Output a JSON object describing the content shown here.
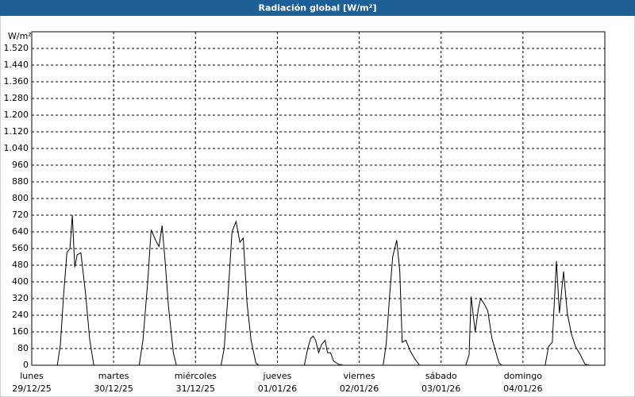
{
  "chart_data": {
    "type": "line",
    "title": "Radiación global [W/m²]",
    "y_label": "W/m²",
    "x": [
      0,
      7.5,
      8.4,
      9.3,
      10.3,
      11.2,
      11.9,
      12.6,
      13.3,
      14.4,
      15.8,
      17,
      18.2,
      31.5,
      32.6,
      34.0,
      35.0,
      36.3,
      37.3,
      38.2,
      39.1,
      40.1,
      41.5,
      42.4,
      55.5,
      56.4,
      57.6,
      58.7,
      59.9,
      61.0,
      62.0,
      63.1,
      64.3,
      65.7,
      66.6,
      79.9,
      80.9,
      81.8,
      82.5,
      83.2,
      84.1,
      85.0,
      86.0,
      86.7,
      87.6,
      88.5,
      89.9,
      91.3,
      103.0,
      103.9,
      104.9,
      105.8,
      107.0,
      107.9,
      108.6,
      109.7,
      110.9,
      112.3,
      113.7,
      127.2,
      128.2,
      128.8,
      130.0,
      130.9,
      131.6,
      132.8,
      133.7,
      134.9,
      136.1,
      137.0,
      137.9,
      139.8,
      141.5,
      143.5,
      150.5,
      151.5,
      152.6,
      153.8,
      154.7,
      155.9,
      157.0,
      158.2,
      159.4,
      160.8,
      162.2,
      163.6,
      168
    ],
    "series": [
      {
        "name": "Radiación global",
        "color": "#000000",
        "values": [
          0,
          0,
          100,
          330,
          540,
          560,
          720,
          470,
          530,
          540,
          340,
          120,
          0,
          0,
          120,
          400,
          650,
          600,
          570,
          670,
          500,
          280,
          60,
          0,
          0,
          80,
          350,
          640,
          690,
          590,
          610,
          300,
          120,
          10,
          0,
          0,
          80,
          130,
          140,
          120,
          60,
          100,
          120,
          60,
          60,
          20,
          5,
          0,
          0,
          100,
          330,
          520,
          600,
          450,
          110,
          120,
          70,
          30,
          0,
          0,
          50,
          330,
          160,
          270,
          320,
          290,
          260,
          130,
          60,
          10,
          0,
          0,
          null,
          0,
          0,
          90,
          110,
          500,
          250,
          450,
          250,
          150,
          90,
          50,
          5,
          0,
          0
        ]
      }
    ],
    "xlim": [
      0,
      168
    ],
    "xticks": [
      {
        "value": 0,
        "label": "lunes",
        "sublabel": "29/12/25"
      },
      {
        "value": 24,
        "label": "martes",
        "sublabel": "30/12/25"
      },
      {
        "value": 48,
        "label": "miércoles",
        "sublabel": "31/12/25"
      },
      {
        "value": 72,
        "label": "jueves",
        "sublabel": "01/01/26"
      },
      {
        "value": 96,
        "label": "viernes",
        "sublabel": "02/01/26"
      },
      {
        "value": 120,
        "label": "sábado",
        "sublabel": "03/01/26"
      },
      {
        "value": 144,
        "label": "domingo",
        "sublabel": "04/01/26"
      }
    ],
    "ylim": [
      0,
      1600
    ],
    "yticks": [
      0,
      80,
      160,
      240,
      320,
      400,
      480,
      560,
      640,
      720,
      800,
      880,
      960,
      {
        "value": 1040,
        "label": "1.040"
      },
      {
        "value": 1120,
        "label": "1.120"
      },
      {
        "value": 1200,
        "label": "1.200"
      },
      {
        "value": 1280,
        "label": "1.280"
      },
      {
        "value": 1360,
        "label": "1.360"
      },
      {
        "value": 1440,
        "label": "1.440"
      },
      {
        "value": 1520,
        "label": "1.520"
      }
    ],
    "grid": true
  }
}
